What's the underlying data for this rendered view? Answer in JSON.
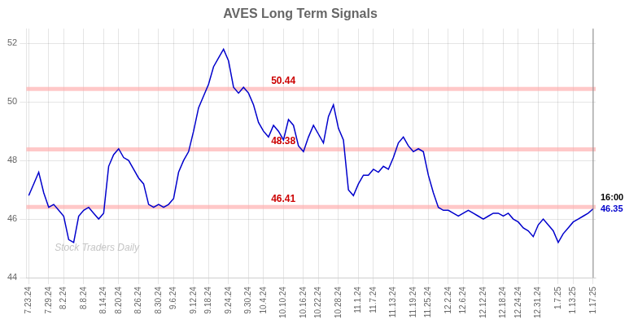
{
  "chart_data": {
    "type": "line",
    "title": "AVES Long Term Signals",
    "categories": [
      "7.23.24",
      null,
      null,
      null,
      "7.29.24",
      null,
      null,
      "8.2.24",
      null,
      null,
      null,
      "8.8.24",
      null,
      null,
      null,
      "8.14.24",
      null,
      null,
      "8.20.24",
      null,
      null,
      null,
      "8.26.24",
      null,
      null,
      null,
      "8.30.24",
      null,
      null,
      "9.6.24",
      null,
      null,
      null,
      "9.12.24",
      null,
      null,
      "9.18.24",
      null,
      null,
      null,
      "9.24.24",
      null,
      null,
      null,
      "9.30.24",
      null,
      null,
      "10.4.24",
      null,
      null,
      null,
      "10.10.24",
      null,
      null,
      null,
      "10.16.24",
      null,
      null,
      "10.22.24",
      null,
      null,
      null,
      "10.28.24",
      null,
      null,
      null,
      "11.1.24",
      null,
      null,
      "11.7.24",
      null,
      null,
      null,
      "11.13.24",
      null,
      null,
      null,
      "11.19.24",
      null,
      null,
      "11.25.24",
      null,
      null,
      null,
      "12.2.24",
      null,
      null,
      "12.6.24",
      null,
      null,
      null,
      "12.12.24",
      null,
      null,
      null,
      "12.18.24",
      null,
      null,
      "12.24.24",
      null,
      null,
      null,
      "12.31.24",
      null,
      null,
      null,
      "1.7.25",
      null,
      null,
      "1.13.25",
      null,
      null,
      null,
      "1.17.25"
    ],
    "values": [
      46.8,
      47.2,
      47.6,
      46.9,
      46.4,
      46.5,
      46.3,
      46.1,
      45.3,
      45.2,
      46.1,
      46.3,
      46.4,
      46.2,
      46.0,
      46.2,
      47.8,
      48.2,
      48.4,
      48.1,
      48.0,
      47.7,
      47.4,
      47.2,
      46.5,
      46.4,
      46.5,
      46.4,
      46.5,
      46.7,
      47.6,
      48.0,
      48.3,
      49.0,
      49.8,
      50.2,
      50.6,
      51.2,
      51.5,
      51.8,
      51.4,
      50.5,
      50.3,
      50.5,
      50.3,
      49.9,
      49.3,
      49.0,
      48.8,
      49.2,
      49.0,
      48.7,
      49.4,
      49.2,
      48.5,
      48.3,
      48.8,
      49.2,
      48.9,
      48.6,
      49.5,
      49.9,
      49.1,
      48.7,
      47.0,
      46.8,
      47.2,
      47.5,
      47.5,
      47.7,
      47.6,
      47.8,
      47.7,
      48.1,
      48.6,
      48.8,
      48.5,
      48.3,
      48.4,
      48.3,
      47.5,
      46.9,
      46.4,
      46.3,
      46.3,
      46.2,
      46.1,
      46.2,
      46.3,
      46.2,
      46.1,
      46.0,
      46.1,
      46.2,
      46.2,
      46.1,
      46.2,
      46.0,
      45.9,
      45.7,
      45.6,
      45.4,
      45.8,
      46.0,
      45.8,
      45.6,
      45.2,
      45.5,
      45.7,
      45.9,
      46.0,
      46.1,
      46.2,
      46.35
    ],
    "color": "#0000cc",
    "ylim": [
      44,
      52.5
    ],
    "yticks": [
      44,
      46,
      48,
      50,
      52
    ],
    "grid": true,
    "hlines": [
      50.44,
      48.38,
      46.41
    ],
    "hline_color": "#ffaaaa",
    "annotations": [
      {
        "text": "50.44",
        "y": 50.44,
        "color": "#cc0000"
      },
      {
        "text": "48.38",
        "y": 48.38,
        "color": "#cc0000"
      },
      {
        "text": "46.41",
        "y": 46.41,
        "color": "#cc0000"
      }
    ],
    "end_labels": [
      {
        "text": "16:00",
        "color": "#000000"
      },
      {
        "text": "46.35",
        "color": "#0000cc"
      }
    ],
    "vline_color": "#888888",
    "watermark": "Stock Traders Daily",
    "watermark_color": "#bbbbbb"
  }
}
